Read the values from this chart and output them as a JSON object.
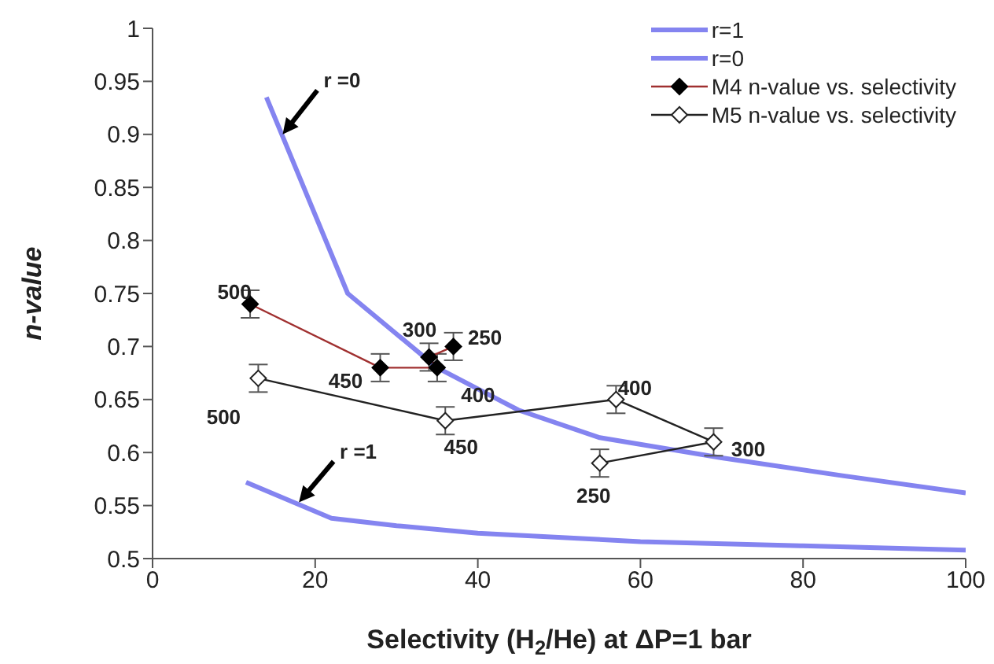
{
  "chart_data": {
    "type": "line",
    "xlabel": "Selectivity (H$_{2}$/He) at ΔP=1 bar",
    "ylabel": "n-value",
    "xlim": [
      0,
      100
    ],
    "xticks": [
      0,
      20,
      40,
      60,
      80,
      100
    ],
    "ylim": [
      0.5,
      1
    ],
    "yticks": [
      0.5,
      0.55,
      0.6,
      0.65,
      0.7,
      0.75,
      0.8,
      0.85,
      0.9,
      0.95,
      1
    ],
    "legend": "top right",
    "grid": false,
    "series": [
      {
        "name": "r=1",
        "color": "#8484f0",
        "marker": "none",
        "x": [
          11.5,
          22,
          30,
          40,
          60,
          80,
          100
        ],
        "values": [
          0.572,
          0.538,
          0.531,
          0.524,
          0.516,
          0.512,
          0.508
        ]
      },
      {
        "name": "r=0",
        "color": "#8484f0",
        "marker": "none",
        "x": [
          14,
          24,
          35,
          45,
          55,
          70,
          85,
          100
        ],
        "values": [
          0.935,
          0.75,
          0.68,
          0.64,
          0.614,
          0.595,
          0.578,
          0.562
        ]
      },
      {
        "name": "M4 n-value vs. selectivity",
        "color": "#a03030",
        "marker": "diamond",
        "x": [
          12,
          28,
          35,
          34,
          37
        ],
        "values": [
          0.74,
          0.68,
          0.68,
          0.69,
          0.7
        ],
        "errors": [
          0.013,
          0.013,
          0.013,
          0.013,
          0.013
        ]
      },
      {
        "name": "M5 n-value vs. selectivity",
        "color": "#222222",
        "marker": "diamond",
        "x": [
          13,
          36,
          57,
          69,
          55
        ],
        "values": [
          0.67,
          0.63,
          0.65,
          0.61,
          0.59
        ],
        "errors": [
          0.013,
          0.013,
          0.013,
          0.013,
          0.013
        ]
      }
    ],
    "annotations": [
      {
        "text": "r =0",
        "x": 16,
        "y": 0.9
      },
      {
        "text": "r =1",
        "x": 18,
        "y": 0.553
      },
      {
        "text": "500",
        "x": 12,
        "y": 0.74
      },
      {
        "text": "450",
        "x": 28,
        "y": 0.68
      },
      {
        "text": "400",
        "x": 35,
        "y": 0.68
      },
      {
        "text": "300",
        "x": 34,
        "y": 0.69
      },
      {
        "text": "250",
        "x": 37,
        "y": 0.7
      },
      {
        "text": "500",
        "x": 13,
        "y": 0.67
      },
      {
        "text": "450",
        "x": 36,
        "y": 0.63
      },
      {
        "text": "400",
        "x": 57,
        "y": 0.65
      },
      {
        "text": "300",
        "x": 69,
        "y": 0.61
      },
      {
        "text": "250",
        "x": 55,
        "y": 0.59
      }
    ]
  }
}
